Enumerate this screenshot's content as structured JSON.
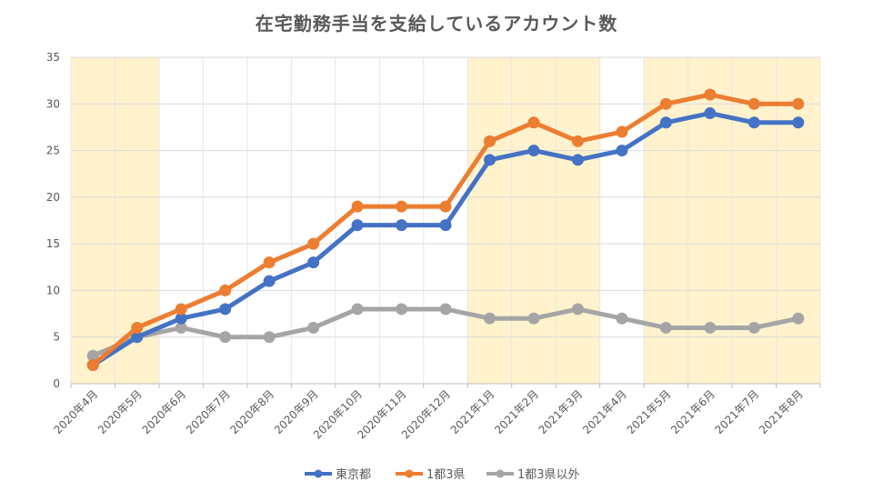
{
  "chart_data": {
    "type": "line",
    "title": "在宅勤務手当を支給しているアカウント数",
    "xlabel": "",
    "ylabel": "",
    "ylim": [
      0,
      35
    ],
    "yticks": [
      0,
      5,
      10,
      15,
      20,
      25,
      30,
      35
    ],
    "grid": true,
    "legend": "bottom-center",
    "categories": [
      "2020年4月",
      "2020年5月",
      "2020年6月",
      "2020年7月",
      "2020年8月",
      "2020年9月",
      "2020年10月",
      "2020年11月",
      "2020年12月",
      "2021年1月",
      "2021年2月",
      "2021年3月",
      "2021年4月",
      "2021年5月",
      "2021年6月",
      "2021年7月",
      "2021年8月"
    ],
    "series": [
      {
        "name": "東京都",
        "color": "#4472C4",
        "values": [
          2,
          5,
          7,
          8,
          11,
          13,
          17,
          17,
          17,
          24,
          25,
          24,
          25,
          28,
          29,
          28,
          28
        ]
      },
      {
        "name": "1都3県",
        "color": "#ED7D31",
        "values": [
          2,
          6,
          8,
          10,
          13,
          15,
          19,
          19,
          19,
          26,
          28,
          26,
          27,
          30,
          31,
          30,
          30
        ]
      },
      {
        "name": "1都3県以外",
        "color": "#A5A5A5",
        "values": [
          3,
          5,
          6,
          5,
          5,
          6,
          8,
          8,
          8,
          7,
          7,
          8,
          7,
          6,
          6,
          6,
          7
        ]
      }
    ],
    "highlight_bands": [
      {
        "from": "2020年4月",
        "to": "2020年5月",
        "color": "#FFF2CC"
      },
      {
        "from": "2021年1月",
        "to": "2021年3月",
        "color": "#FFF2CC"
      },
      {
        "from": "2021年5月",
        "to": "2021年8月",
        "color": "#FFF2CC"
      }
    ]
  }
}
